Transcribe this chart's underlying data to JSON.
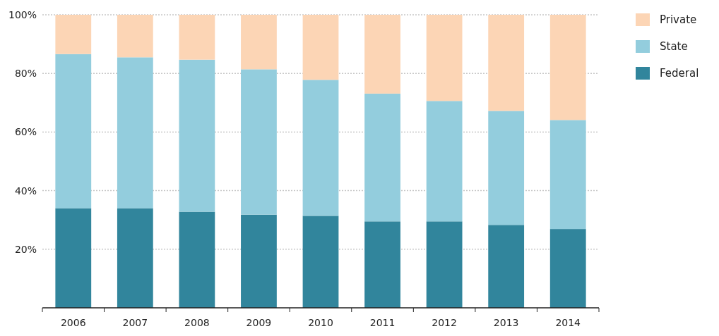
{
  "chart_data": {
    "type": "bar",
    "stacked": true,
    "categories": [
      "2006",
      "2007",
      "2008",
      "2009",
      "2010",
      "2011",
      "2012",
      "2013",
      "2014"
    ],
    "series": [
      {
        "name": "Federal",
        "color": "#31859c",
        "values": [
          34,
          34,
          32.8,
          31.8,
          31.4,
          29.5,
          29.5,
          28.3,
          26.9
        ]
      },
      {
        "name": "State",
        "color": "#93cddd",
        "values": [
          52.6,
          51.5,
          51.9,
          49.6,
          46.4,
          43.6,
          41.1,
          38.9,
          37.2
        ]
      },
      {
        "name": "Private",
        "color": "#fcd5b5",
        "values": [
          13.4,
          14.5,
          15.3,
          18.6,
          22.2,
          26.9,
          29.4,
          32.8,
          35.9
        ]
      }
    ],
    "ylim": [
      0,
      100
    ],
    "yticks": [
      {
        "value": 20,
        "label": "20%"
      },
      {
        "value": 40,
        "label": "40%"
      },
      {
        "value": 60,
        "label": "60%"
      },
      {
        "value": 80,
        "label": "80%"
      },
      {
        "value": 100,
        "label": "100%"
      }
    ],
    "grid": "y",
    "legend": "top right"
  }
}
